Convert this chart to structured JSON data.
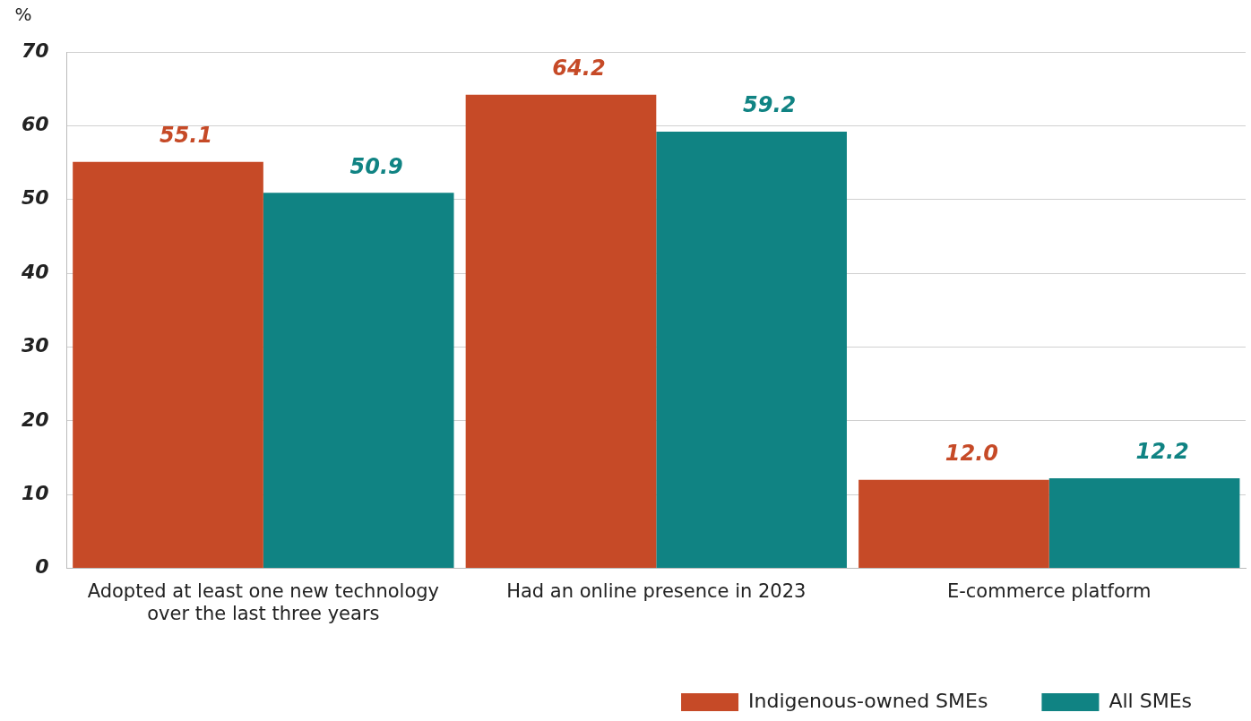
{
  "chart_data": {
    "type": "bar",
    "ylabel": "%",
    "categories": [
      "Adopted at least one new technology over the last three years",
      "Had an online presence in 2023",
      "E-commerce platform"
    ],
    "series": [
      {
        "name": "Indigenous-owned SMEs",
        "color": "#c64a27",
        "values": [
          55.1,
          64.2,
          12.0
        ],
        "value_labels": [
          "55.1",
          "64.2",
          "12.0"
        ]
      },
      {
        "name": "All SMEs",
        "color": "#108383",
        "values": [
          50.9,
          59.2,
          12.2
        ],
        "value_labels": [
          "50.9",
          "59.2",
          "12.2"
        ]
      }
    ],
    "ylim": [
      0,
      70
    ],
    "yticks": [
      0,
      10,
      20,
      30,
      40,
      50,
      60,
      70
    ],
    "grid": "y",
    "legend": "bottom right"
  }
}
